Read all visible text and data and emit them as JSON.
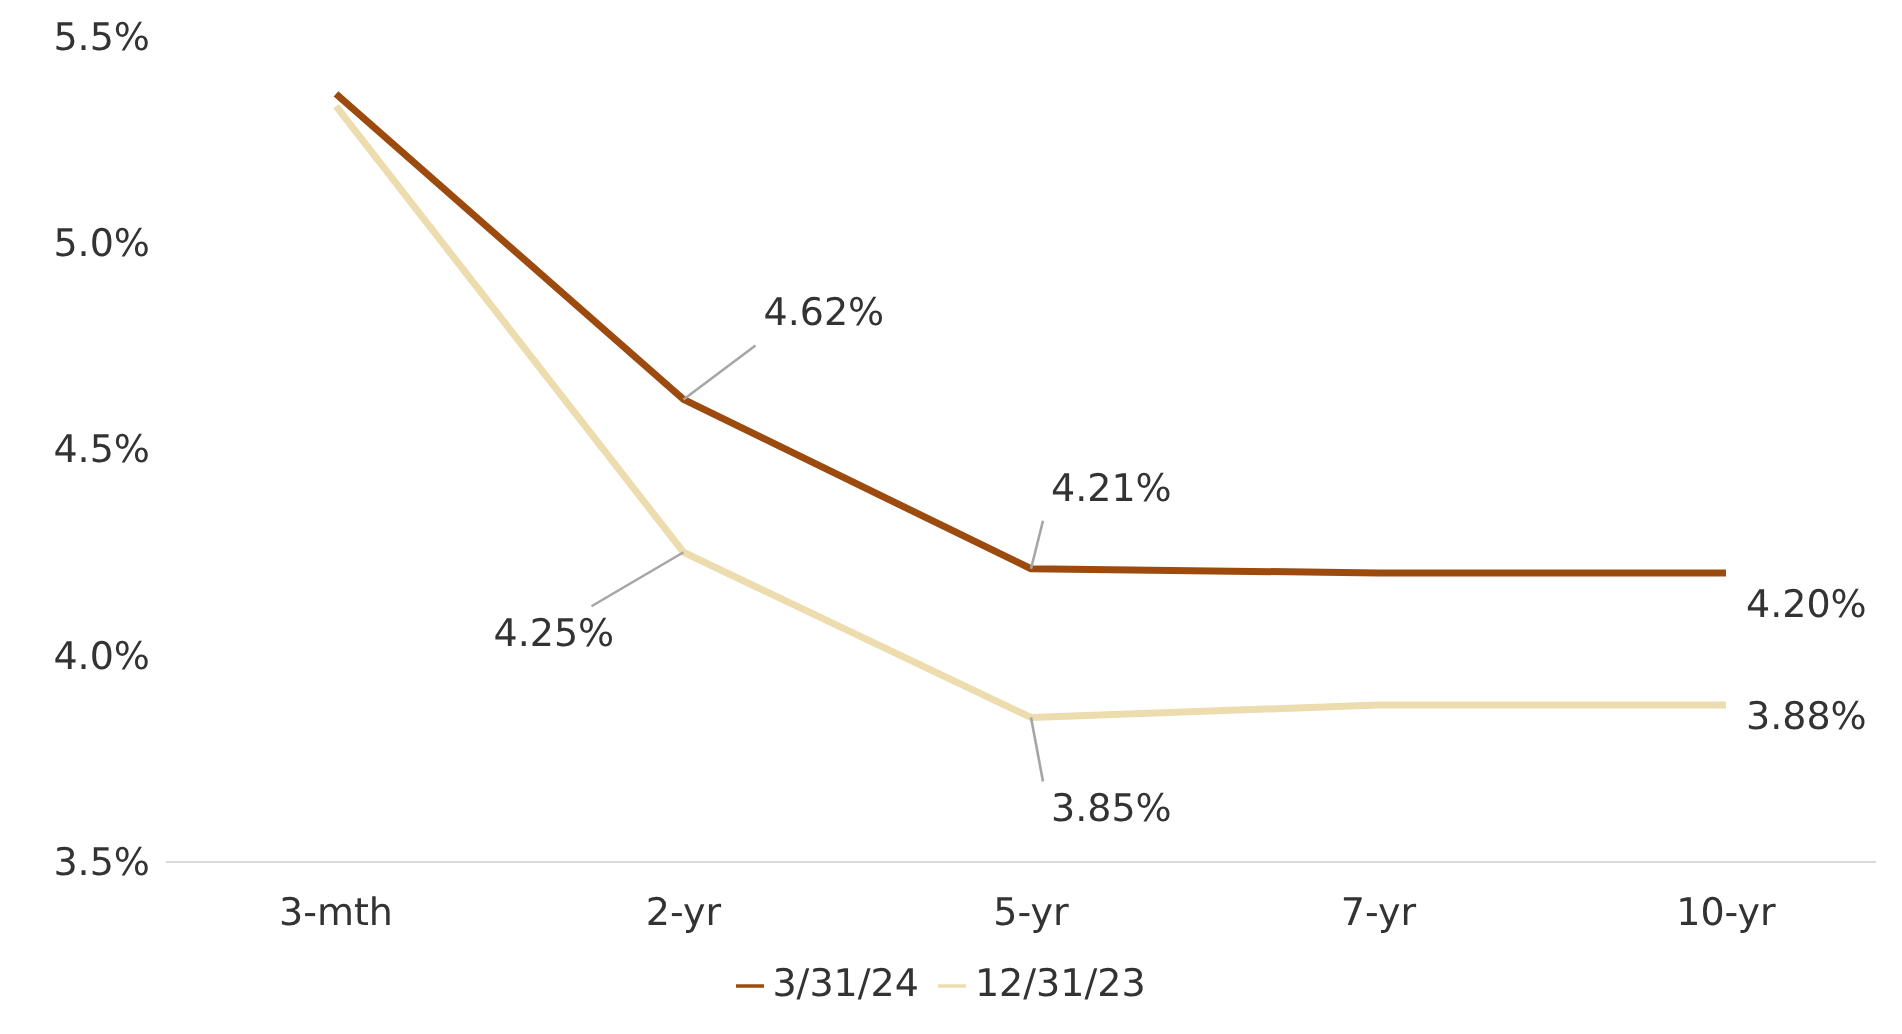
{
  "chart_data": {
    "type": "line",
    "categories": [
      "3-mth",
      "2-yr",
      "5-yr",
      "7-yr",
      "10-yr"
    ],
    "series": [
      {
        "name": "3/31/24",
        "color": "#9c4a0e",
        "values": [
          5.36,
          4.62,
          4.21,
          4.2,
          4.2
        ],
        "value_labels": [
          null,
          "4.62%",
          "4.21%",
          null,
          "4.20%"
        ]
      },
      {
        "name": "12/31/23",
        "color": "#ecdcae",
        "values": [
          5.33,
          4.25,
          3.85,
          3.88,
          3.88
        ],
        "value_labels": [
          null,
          "4.25%",
          "3.85%",
          null,
          "3.88%"
        ]
      }
    ],
    "ylim": [
      3.5,
      5.5
    ],
    "yticks": [
      {
        "value": 3.5,
        "label": "3.5%"
      },
      {
        "value": 4.0,
        "label": "4.0%"
      },
      {
        "value": 4.5,
        "label": "4.5%"
      },
      {
        "value": 5.0,
        "label": "5.0%"
      },
      {
        "value": 5.5,
        "label": "5.5%"
      }
    ],
    "grid": false,
    "legend": "bottom",
    "marker": "none",
    "line_style": "solid"
  }
}
